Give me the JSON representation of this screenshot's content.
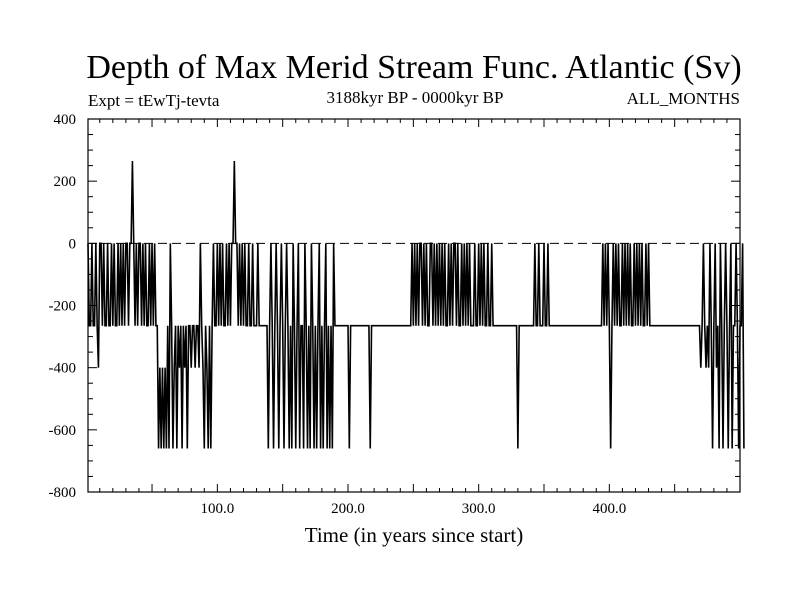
{
  "chart_data": {
    "type": "line",
    "title": "Depth of Max Merid Stream Func. Atlantic (Sv)",
    "subtitle_left": "Expt = tEwTj-tevta",
    "subtitle_center": "3188kyr BP - 0000kyr BP",
    "subtitle_right": "ALL_MONTHS",
    "xlabel": "Time (in years since start)",
    "ylabel": "",
    "xlim": [
      1,
      500
    ],
    "ylim": [
      -800,
      400
    ],
    "x_ticks": [
      {
        "value": 100,
        "label": "100.0"
      },
      {
        "value": 200,
        "label": "200.0"
      },
      {
        "value": 300,
        "label": "300.0"
      },
      {
        "value": 400,
        "label": "400.0"
      }
    ],
    "y_ticks": [
      {
        "value": 400,
        "label": "400"
      },
      {
        "value": 200,
        "label": "200"
      },
      {
        "value": 0,
        "label": "0"
      },
      {
        "value": -200,
        "label": "-200"
      },
      {
        "value": -400,
        "label": "-400"
      },
      {
        "value": -600,
        "label": "-600"
      },
      {
        "value": -800,
        "label": "-800"
      }
    ],
    "zero_line": {
      "value": 0,
      "style": "dashed"
    },
    "grid": false,
    "series": [
      {
        "values": [
          0,
          -265,
          -265,
          0,
          -265,
          -265,
          0,
          -265,
          -400,
          0,
          0,
          -265,
          0,
          -265,
          -265,
          0,
          -265,
          -265,
          0,
          -265,
          0,
          -265,
          -265,
          0,
          -265,
          0,
          -265,
          0,
          -265,
          0,
          0,
          -265,
          0,
          0,
          265,
          0,
          -265,
          0,
          -265,
          0,
          0,
          -265,
          0,
          -265,
          0,
          -265,
          -265,
          0,
          -265,
          0,
          -265,
          0,
          -265,
          -265,
          -660,
          -400,
          -660,
          -400,
          -660,
          -400,
          -660,
          -265,
          -660,
          0,
          -265,
          -660,
          -400,
          -265,
          -660,
          -265,
          -400,
          -265,
          -660,
          -265,
          -400,
          -265,
          -660,
          -265,
          -265,
          -400,
          -265,
          -265,
          -400,
          -265,
          -265,
          -400,
          0,
          -265,
          -400,
          -660,
          -265,
          -400,
          -660,
          -265,
          -660,
          -265,
          0,
          -265,
          -265,
          0,
          -265,
          0,
          -265,
          0,
          -265,
          -265,
          0,
          -265,
          0,
          -265,
          0,
          0,
          265,
          0,
          0,
          -265,
          0,
          -265,
          0,
          -265,
          0,
          -265,
          -265,
          0,
          -265,
          -265,
          0,
          -265,
          -265,
          -265,
          0,
          -265,
          -265,
          -265,
          -265,
          -265,
          -265,
          -265,
          -660,
          -265,
          0,
          -265,
          -660,
          -265,
          0,
          -265,
          -660,
          -265,
          0,
          -265,
          -660,
          -265,
          0,
          -265,
          -660,
          -265,
          -660,
          0,
          -265,
          -660,
          -265,
          0,
          -660,
          -265,
          -265,
          -660,
          0,
          -265,
          -660,
          -265,
          -660,
          0,
          -265,
          -660,
          -265,
          -660,
          -265,
          0,
          -660,
          -265,
          -660,
          -265,
          0,
          -660,
          -265,
          -660,
          -265,
          -660,
          0,
          -265,
          -265,
          -265,
          -265,
          -265,
          -265,
          -265,
          -265,
          -265,
          -265,
          -265,
          -660,
          -265,
          -265,
          -265,
          -265,
          -265,
          -265,
          -265,
          -265,
          -265,
          -265,
          -265,
          -265,
          -265,
          -265,
          -265,
          -660,
          -265,
          -265,
          -265,
          -265,
          -265,
          -265,
          -265,
          -265,
          -265,
          -265,
          -265,
          -265,
          -265,
          -265,
          -265,
          -265,
          -265,
          -265,
          -265,
          -265,
          -265,
          -265,
          -265,
          -265,
          -265,
          -265,
          -265,
          -265,
          -265,
          -265,
          -265,
          0,
          -265,
          0,
          -265,
          0,
          -265,
          0,
          0,
          -265,
          0,
          -265,
          0,
          -265,
          -265,
          0,
          0,
          -265,
          0,
          -265,
          0,
          -265,
          0,
          -265,
          0,
          -265,
          0,
          -265,
          -265,
          0,
          -265,
          0,
          -265,
          0,
          0,
          -265,
          0,
          -265,
          -265,
          0,
          -265,
          0,
          -265,
          0,
          -265,
          0,
          -265,
          -265,
          -265,
          0,
          -265,
          -265,
          0,
          -265,
          0,
          -265,
          0,
          -265,
          -265,
          0,
          -265,
          -265,
          0,
          -265,
          -265,
          -265,
          -265,
          -265,
          -265,
          -265,
          -265,
          -265,
          -265,
          -265,
          -265,
          -265,
          -265,
          -265,
          -265,
          -265,
          -265,
          -265,
          -660,
          -265,
          -265,
          -265,
          -265,
          -265,
          -265,
          -265,
          -265,
          -265,
          -265,
          -265,
          -265,
          0,
          -265,
          -265,
          0,
          -265,
          -265,
          -265,
          0,
          -265,
          -265,
          0,
          -265,
          -265,
          -265,
          -265,
          -265,
          -265,
          -265,
          -265,
          -265,
          -265,
          -265,
          -265,
          -265,
          -265,
          -265,
          -265,
          -265,
          -265,
          -265,
          -265,
          -265,
          -265,
          -265,
          -265,
          -265,
          -265,
          -265,
          -265,
          -265,
          -265,
          -265,
          -265,
          -265,
          -265,
          -265,
          -265,
          -265,
          -265,
          -265,
          -265,
          -265,
          0,
          -265,
          0,
          -265,
          0,
          -265,
          -660,
          -265,
          0,
          -265,
          0,
          -265,
          0,
          -265,
          -265,
          0,
          -265,
          0,
          -265,
          0,
          -265,
          0,
          -265,
          -265,
          0,
          -265,
          0,
          -265,
          0,
          -265,
          0,
          -265,
          -265,
          0,
          -265,
          0,
          -265,
          -265,
          -265,
          -265,
          -265,
          -265,
          -265,
          -265,
          -265,
          -265,
          -265,
          -265,
          -265,
          -265,
          -265,
          -265,
          -265,
          -265,
          -265,
          -265,
          -265,
          -265,
          -265,
          -265,
          -265,
          -265,
          -265,
          -265,
          -265,
          -265,
          -265,
          -265,
          -265,
          -265,
          -265,
          -265,
          -265,
          -265,
          -265,
          -400,
          -265,
          0,
          -265,
          -400,
          -265,
          -400,
          0,
          -265,
          -660,
          -265,
          0,
          -400,
          -265,
          -660,
          0,
          -265,
          -660,
          -265,
          0,
          -265,
          -660,
          -265,
          0,
          -660,
          -265,
          -265,
          0,
          -265,
          -660,
          -265,
          -265,
          0,
          -660
        ]
      }
    ]
  }
}
